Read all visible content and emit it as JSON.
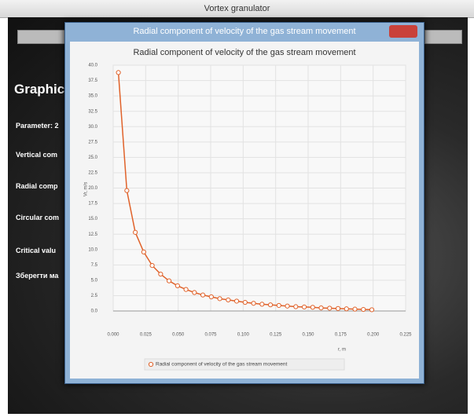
{
  "window": {
    "title": "Vortex granulator"
  },
  "background_panel": {
    "heading": "Graphic",
    "labels": [
      "Parameter: 2",
      "Vertical com",
      "Radial comp",
      "Circular com",
      "Critical valu",
      "Зберегти ма"
    ]
  },
  "dialog": {
    "title": "Radial component of velocity of the gas stream movement"
  },
  "chart_data": {
    "type": "line",
    "title": "Radial component of velocity of the gas stream movement",
    "x_label": "r, m",
    "y_label": "Vr, m/s",
    "x": [
      0.004,
      0.0105,
      0.017,
      0.0235,
      0.03,
      0.0365,
      0.043,
      0.0495,
      0.056,
      0.0625,
      0.069,
      0.0755,
      0.082,
      0.0885,
      0.095,
      0.1015,
      0.108,
      0.1145,
      0.121,
      0.1275,
      0.134,
      0.1405,
      0.147,
      0.1535,
      0.16,
      0.1665,
      0.173,
      0.1795,
      0.186,
      0.1925,
      0.199
    ],
    "series": [
      {
        "name": "Radial component of velocity of the gas stream movement",
        "color": "#e0622a",
        "values": [
          38.8,
          19.6,
          12.8,
          9.6,
          7.4,
          6.0,
          4.9,
          4.1,
          3.5,
          3.0,
          2.6,
          2.3,
          2.0,
          1.8,
          1.6,
          1.4,
          1.25,
          1.1,
          1.0,
          0.9,
          0.8,
          0.7,
          0.65,
          0.6,
          0.5,
          0.45,
          0.4,
          0.35,
          0.3,
          0.25,
          0.2
        ]
      }
    ],
    "xlim": [
      0,
      0.225
    ],
    "ylim": [
      0,
      40
    ],
    "xticks": [
      {
        "value": 0,
        "label": "0.000"
      },
      {
        "value": 0.025,
        "label": "0.025"
      },
      {
        "value": 0.05,
        "label": "0.050"
      },
      {
        "value": 0.075,
        "label": "0.075"
      },
      {
        "value": 0.1,
        "label": "0.100"
      },
      {
        "value": 0.125,
        "label": "0.125"
      },
      {
        "value": 0.15,
        "label": "0.150"
      },
      {
        "value": 0.175,
        "label": "0.175"
      },
      {
        "value": 0.2,
        "label": "0.200"
      },
      {
        "value": 0.225,
        "label": "0.225"
      }
    ],
    "yticks": [
      {
        "value": 0,
        "label": "0.0"
      },
      {
        "value": 2.5,
        "label": "2.5"
      },
      {
        "value": 5,
        "label": "5.0"
      },
      {
        "value": 7.5,
        "label": "7.5"
      },
      {
        "value": 10,
        "label": "10.0"
      },
      {
        "value": 12.5,
        "label": "12.5"
      },
      {
        "value": 15,
        "label": "15.0"
      },
      {
        "value": 17.5,
        "label": "17.5"
      },
      {
        "value": 20,
        "label": "20.0"
      },
      {
        "value": 22.5,
        "label": "22.5"
      },
      {
        "value": 25,
        "label": "25.0"
      },
      {
        "value": 27.5,
        "label": "27.5"
      },
      {
        "value": 30,
        "label": "30.0"
      },
      {
        "value": 32.5,
        "label": "32.5"
      },
      {
        "value": 35,
        "label": "35.0"
      },
      {
        "value": 37.5,
        "label": "37.5"
      },
      {
        "value": 40,
        "label": "40.0"
      }
    ],
    "grid": true,
    "legend": "bottom"
  }
}
